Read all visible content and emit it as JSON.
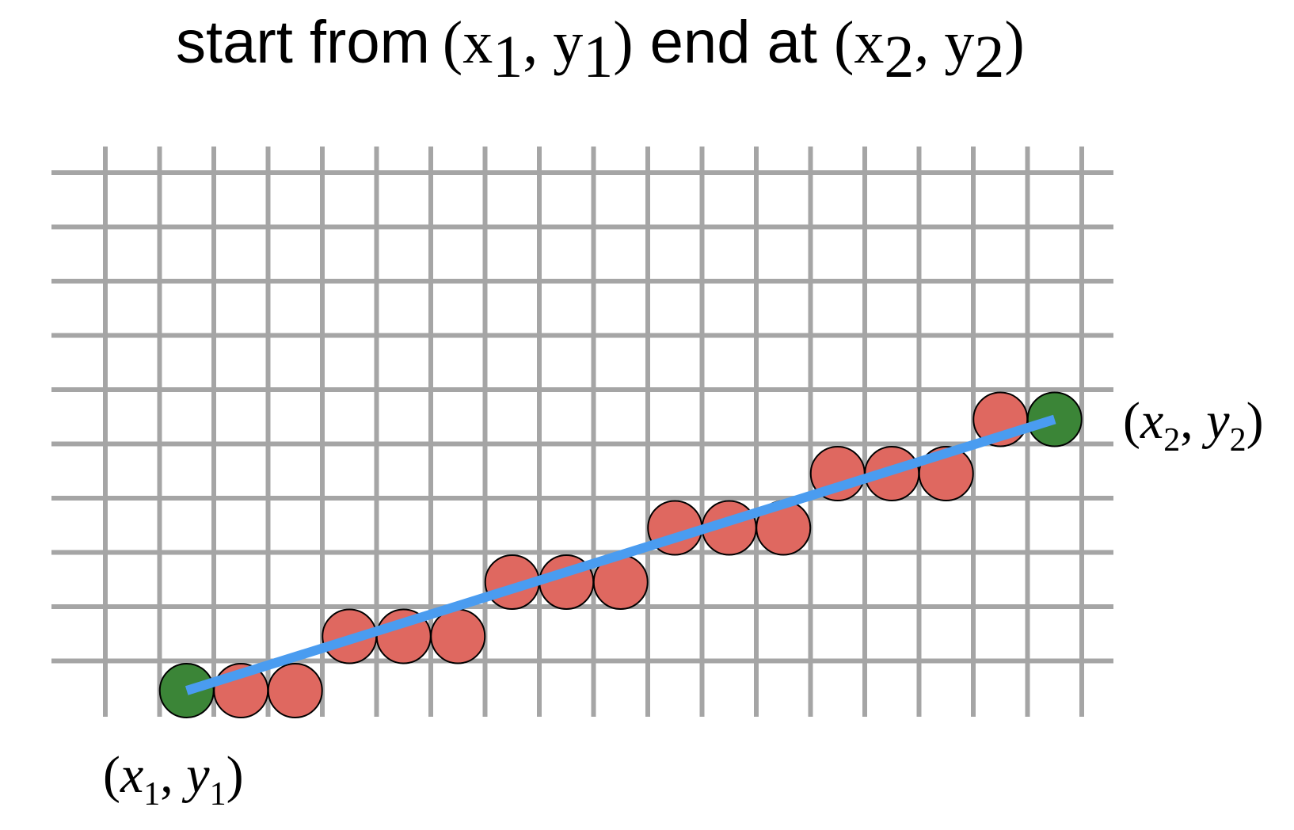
{
  "title": {
    "word_start_from": "start from",
    "p1_open": "(",
    "p1_x": "x",
    "p1_x_sub": "1",
    "p1_comma": ", ",
    "p1_y": "y",
    "p1_y_sub": "1",
    "p1_close": ")",
    "word_end_at": " end at ",
    "p2_open": "(",
    "p2_x": "x",
    "p2_x_sub": "2",
    "p2_comma": ", ",
    "p2_y": "y",
    "p2_y_sub": "2",
    "p2_close": ")"
  },
  "label_start": {
    "open": "(",
    "x": "x",
    "x_sub": "1",
    "comma": ", ",
    "y": "y",
    "y_sub": "1",
    "close": ")"
  },
  "label_end": {
    "open": "(",
    "x": "x",
    "x_sub": "2",
    "comma": ", ",
    "y": "y",
    "y_sub": "2",
    "close": ")"
  },
  "grid": {
    "columns": 19,
    "rows": 10,
    "color": "#a5a5a5"
  },
  "line": {
    "from": [
      1,
      0
    ],
    "to": [
      17,
      5
    ],
    "color": "#4a9cf0"
  },
  "pixels": {
    "endpoint_color": "#3b8537",
    "interior_color": "#df6860",
    "points": [
      [
        1,
        0,
        "endpoint"
      ],
      [
        2,
        0,
        "interior"
      ],
      [
        3,
        0,
        "interior"
      ],
      [
        4,
        1,
        "interior"
      ],
      [
        5,
        1,
        "interior"
      ],
      [
        6,
        1,
        "interior"
      ],
      [
        7,
        2,
        "interior"
      ],
      [
        8,
        2,
        "interior"
      ],
      [
        9,
        2,
        "interior"
      ],
      [
        10,
        3,
        "interior"
      ],
      [
        11,
        3,
        "interior"
      ],
      [
        12,
        3,
        "interior"
      ],
      [
        13,
        4,
        "interior"
      ],
      [
        14,
        4,
        "interior"
      ],
      [
        15,
        4,
        "interior"
      ],
      [
        16,
        5,
        "interior"
      ],
      [
        17,
        5,
        "endpoint"
      ]
    ]
  }
}
